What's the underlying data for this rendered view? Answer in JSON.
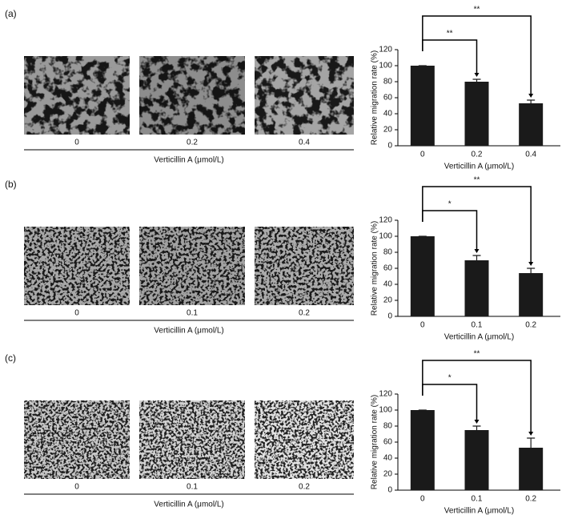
{
  "chart_data": [
    {
      "type": "bar",
      "panel_label": "(a)",
      "image_labels": [
        "0",
        "0.2",
        "0.4"
      ],
      "image_axis_label": "Verticillin A (μmol/L)",
      "categories": [
        "0",
        "0.2",
        "0.4"
      ],
      "values": [
        100,
        80,
        53
      ],
      "errors": [
        0,
        3,
        4
      ],
      "color": "#1a1a1a",
      "ylim": [
        0,
        120
      ],
      "yticks": [
        0,
        20,
        40,
        60,
        80,
        100,
        120
      ],
      "ylabel": "Relative migration rate (%)",
      "xlabel": "Verticillin A (μmol/L)",
      "significance": [
        "**",
        "**"
      ]
    },
    {
      "type": "bar",
      "panel_label": "(b)",
      "image_labels": [
        "0",
        "0.1",
        "0.2"
      ],
      "image_axis_label": "Verticillin A (μmol/L)",
      "categories": [
        "0",
        "0.1",
        "0.2"
      ],
      "values": [
        100,
        70,
        54
      ],
      "errors": [
        0,
        6,
        6
      ],
      "color": "#1a1a1a",
      "ylim": [
        0,
        120
      ],
      "yticks": [
        0,
        20,
        40,
        60,
        80,
        100,
        120
      ],
      "ylabel": "Relative migration rate (%)",
      "xlabel": "Verticillin A (μmol/L)",
      "significance": [
        "*",
        "**"
      ]
    },
    {
      "type": "bar",
      "panel_label": "(c)",
      "image_labels": [
        "0",
        "0.1",
        "0.2"
      ],
      "image_axis_label": "Verticillin A (μmol/L)",
      "categories": [
        "0",
        "0.1",
        "0.2"
      ],
      "values": [
        100,
        75,
        53
      ],
      "errors": [
        0,
        5,
        12
      ],
      "color": "#1a1a1a",
      "ylim": [
        0,
        120
      ],
      "yticks": [
        0,
        20,
        40,
        60,
        80,
        100,
        120
      ],
      "ylabel": "Relative migration rate (%)",
      "xlabel": "Verticillin A (μmol/L)",
      "significance": [
        "*",
        "**"
      ]
    }
  ]
}
